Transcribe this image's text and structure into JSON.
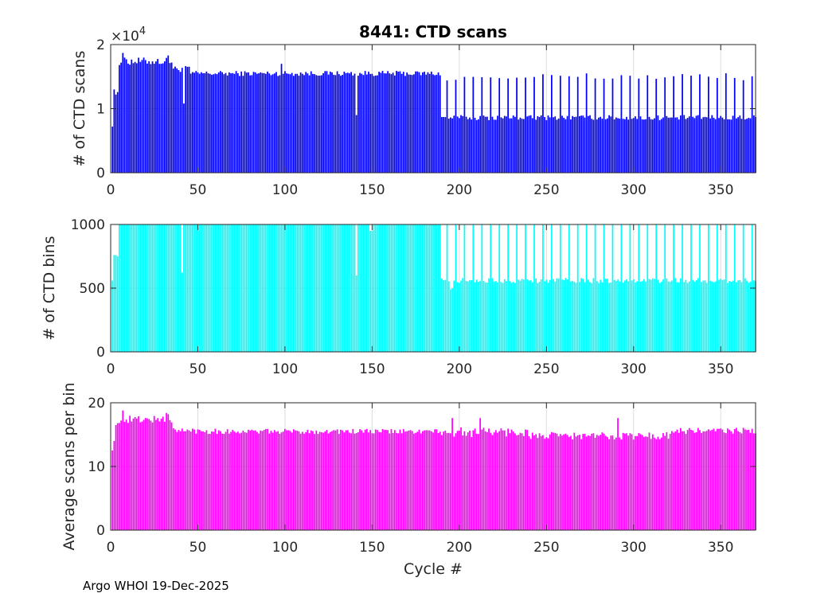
{
  "chart_data": [
    {
      "type": "bar",
      "title": "8441: CTD scans",
      "xlabel": "",
      "ylabel": "# of CTD scans",
      "xlim": [
        0,
        370
      ],
      "ylim": [
        0,
        20000
      ],
      "xticks": [
        "0",
        "50",
        "100",
        "150",
        "200",
        "250",
        "300",
        "350"
      ],
      "yticks": [
        "0",
        "1",
        "2"
      ],
      "exponent_label": "×10",
      "exponent_power": "4",
      "color": "#0000ff",
      "grid": true,
      "segments": [
        {
          "from": 1,
          "to": 4,
          "v": [
            7200,
            13000,
            12200,
            12600
          ]
        },
        {
          "from": 5,
          "to": 35,
          "base": 17400,
          "jitter": 600
        },
        {
          "from": 36,
          "to": 45,
          "base": 16200,
          "jitter": 500
        },
        {
          "from": 46,
          "to": 189,
          "base": 15500,
          "jitter": 400
        },
        {
          "from": 190,
          "to": 370,
          "base": 8600,
          "jitter": 400
        }
      ],
      "spikes": [
        {
          "from": 193,
          "to": 370,
          "step": 5,
          "value": 15000,
          "jitter": 600
        }
      ],
      "overrides": [
        [
          7,
          18700
        ],
        [
          9,
          17700
        ],
        [
          33,
          18300
        ],
        [
          42,
          10800
        ],
        [
          98,
          17000
        ],
        [
          141,
          9000
        ]
      ]
    },
    {
      "type": "bar",
      "title": "",
      "xlabel": "",
      "ylabel": "# of CTD bins",
      "xlim": [
        0,
        370
      ],
      "ylim": [
        0,
        1000
      ],
      "xticks": [
        "0",
        "50",
        "100",
        "150",
        "200",
        "250",
        "300",
        "350"
      ],
      "yticks": [
        "0",
        "500",
        "1000"
      ],
      "color": "#00ffff",
      "grid": true,
      "segments": [
        {
          "from": 1,
          "to": 4,
          "v": [
            560,
            760,
            760,
            750
          ]
        },
        {
          "from": 5,
          "to": 189,
          "base": 1000,
          "jitter": 0
        },
        {
          "from": 190,
          "to": 370,
          "base": 560,
          "jitter": 20
        }
      ],
      "spikes": [
        {
          "from": 193,
          "to": 370,
          "step": 5,
          "value": 1000,
          "jitter": 0
        }
      ],
      "overrides": [
        [
          41,
          620
        ],
        [
          141,
          600
        ],
        [
          149,
          950
        ],
        [
          150,
          950
        ],
        [
          195,
          490
        ],
        [
          196,
          500
        ]
      ]
    },
    {
      "type": "bar",
      "title": "",
      "xlabel": "Cycle #",
      "ylabel": "Average scans per bin",
      "xlim": [
        0,
        370
      ],
      "ylim": [
        0,
        20
      ],
      "xticks": [
        "0",
        "50",
        "100",
        "150",
        "200",
        "250",
        "300",
        "350"
      ],
      "yticks": [
        "0",
        "10",
        "20"
      ],
      "color": "#ff00ff",
      "grid": true,
      "segments": [
        {
          "from": 1,
          "to": 4,
          "v": [
            12.5,
            14.0,
            16.5,
            16.8
          ]
        },
        {
          "from": 5,
          "to": 35,
          "base": 17.4,
          "jitter": 0.6
        },
        {
          "from": 36,
          "to": 60,
          "base": 15.6,
          "jitter": 0.5
        },
        {
          "from": 61,
          "to": 189,
          "base": 15.5,
          "jitter": 0.4
        },
        {
          "from": 190,
          "to": 240,
          "base": 15.4,
          "jitter": 0.8
        },
        {
          "from": 241,
          "to": 320,
          "base": 14.8,
          "jitter": 0.6
        },
        {
          "from": 321,
          "to": 370,
          "base": 15.6,
          "jitter": 0.5
        }
      ],
      "spikes": [],
      "overrides": [
        [
          7,
          18.8
        ],
        [
          32,
          18.4
        ],
        [
          33,
          18.2
        ],
        [
          196,
          17.6
        ],
        [
          212,
          17.6
        ],
        [
          291,
          17.6
        ]
      ]
    }
  ],
  "footer": "Argo WHOI 19-Dec-2025"
}
